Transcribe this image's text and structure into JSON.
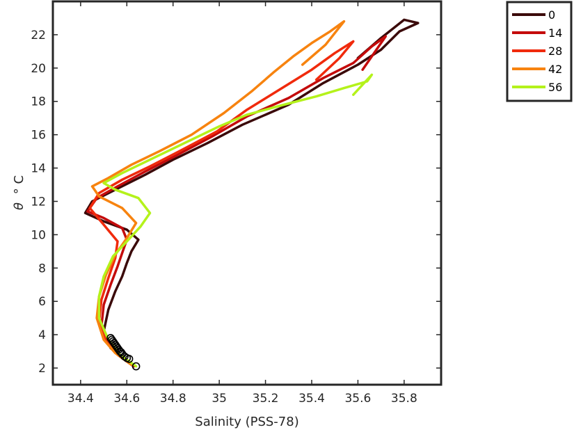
{
  "chart_data": {
    "type": "line",
    "title": "",
    "xlabel": "Salinity (PSS-78)",
    "ylabel_symbol": "θ",
    "ylabel_unit": "° C",
    "xlim": [
      34.28,
      35.96
    ],
    "ylim": [
      1.0,
      24.0
    ],
    "x_ticks": [
      34.4,
      34.6,
      34.8,
      35,
      35.2,
      35.4,
      35.6,
      35.8
    ],
    "x_tick_labels": [
      "34.4",
      "34.6",
      "34.8",
      "35",
      "35.2",
      "35.4",
      "35.6",
      "35.8"
    ],
    "y_ticks": [
      2,
      4,
      6,
      8,
      10,
      12,
      14,
      16,
      18,
      20,
      22
    ],
    "y_tick_labels": [
      "2",
      "4",
      "6",
      "8",
      "10",
      "12",
      "14",
      "16",
      "18",
      "20",
      "22"
    ],
    "grid": false,
    "legend_position": "outside-top-right",
    "series": [
      {
        "name": "0",
        "color": "#3b0a0a",
        "x": [
          34.63,
          34.58,
          34.53,
          34.5,
          34.52,
          34.55,
          34.58,
          34.6,
          34.62,
          34.65,
          34.6,
          34.5,
          34.42,
          34.45,
          34.55,
          34.68,
          34.8,
          34.95,
          35.1,
          35.3,
          35.45,
          35.6,
          35.7,
          35.78,
          35.86,
          35.8,
          35.7,
          35.6
        ],
        "y": [
          2.1,
          2.6,
          3.2,
          4.2,
          5.5,
          6.6,
          7.5,
          8.3,
          9.0,
          9.7,
          10.3,
          10.8,
          11.3,
          12.0,
          12.7,
          13.6,
          14.5,
          15.5,
          16.6,
          17.8,
          19.1,
          20.2,
          21.1,
          22.2,
          22.7,
          22.9,
          21.8,
          20.6
        ]
      },
      {
        "name": "14",
        "color": "#c40b0b",
        "x": [
          34.63,
          34.57,
          34.52,
          34.49,
          34.5,
          34.53,
          34.56,
          34.58,
          34.6,
          34.58,
          34.5,
          34.43,
          34.47,
          34.56,
          34.68,
          34.82,
          34.97,
          35.12,
          35.3,
          35.45,
          35.58,
          35.66,
          35.72,
          35.62
        ],
        "y": [
          2.1,
          2.7,
          3.4,
          4.5,
          5.8,
          7.0,
          8.1,
          8.9,
          9.7,
          10.4,
          11.0,
          11.4,
          12.2,
          12.9,
          13.8,
          14.8,
          15.9,
          17.1,
          18.2,
          19.4,
          20.3,
          21.3,
          21.9,
          19.9
        ]
      },
      {
        "name": "28",
        "color": "#f02a0c",
        "x": [
          34.62,
          34.56,
          34.51,
          34.48,
          34.49,
          34.52,
          34.55,
          34.56,
          34.5,
          34.44,
          34.48,
          34.58,
          34.7,
          34.84,
          34.99,
          35.12,
          35.26,
          35.4,
          35.5,
          35.58,
          35.52,
          35.42
        ],
        "y": [
          2.2,
          2.8,
          3.6,
          4.8,
          6.1,
          7.4,
          8.6,
          9.6,
          10.6,
          11.6,
          12.5,
          13.3,
          14.1,
          15.1,
          16.2,
          17.5,
          18.7,
          19.9,
          20.9,
          21.6,
          20.6,
          19.3
        ]
      },
      {
        "name": "42",
        "color": "#f7830f",
        "x": [
          34.62,
          34.55,
          34.5,
          34.47,
          34.48,
          34.51,
          34.55,
          34.6,
          34.64,
          34.58,
          34.48,
          34.45,
          34.52,
          34.62,
          34.74,
          34.88,
          35.02,
          35.14,
          35.24,
          35.32,
          35.4,
          35.48,
          35.54,
          35.46,
          35.36
        ],
        "y": [
          2.2,
          2.9,
          3.7,
          5.0,
          6.3,
          7.6,
          8.8,
          9.8,
          10.7,
          11.6,
          12.3,
          12.9,
          13.4,
          14.2,
          15.0,
          16.0,
          17.3,
          18.6,
          19.8,
          20.7,
          21.5,
          22.2,
          22.8,
          21.4,
          20.2
        ]
      },
      {
        "name": "56",
        "color": "#b4f21b",
        "x": [
          34.64,
          34.57,
          34.52,
          34.48,
          34.48,
          34.5,
          34.54,
          34.6,
          34.66,
          34.7,
          34.65,
          34.55,
          34.5,
          34.58,
          34.7,
          34.85,
          35.0,
          35.12,
          35.28,
          35.42,
          35.54,
          35.64,
          35.66,
          35.58
        ],
        "y": [
          2.1,
          2.8,
          3.7,
          5.0,
          6.3,
          7.5,
          8.7,
          9.6,
          10.5,
          11.3,
          12.2,
          12.7,
          13.1,
          13.7,
          14.5,
          15.5,
          16.5,
          17.2,
          17.8,
          18.3,
          18.8,
          19.2,
          19.6,
          18.4
        ]
      }
    ],
    "markers": {
      "shape": "circle",
      "color": "#000000",
      "x": [
        34.53,
        34.535,
        34.54,
        34.545,
        34.55,
        34.555,
        34.56,
        34.565,
        34.57,
        34.575,
        34.58,
        34.59,
        34.6,
        34.61,
        34.64
      ],
      "y": [
        3.8,
        3.7,
        3.6,
        3.5,
        3.4,
        3.3,
        3.2,
        3.1,
        3.0,
        2.95,
        2.85,
        2.7,
        2.6,
        2.55,
        2.1
      ]
    }
  }
}
